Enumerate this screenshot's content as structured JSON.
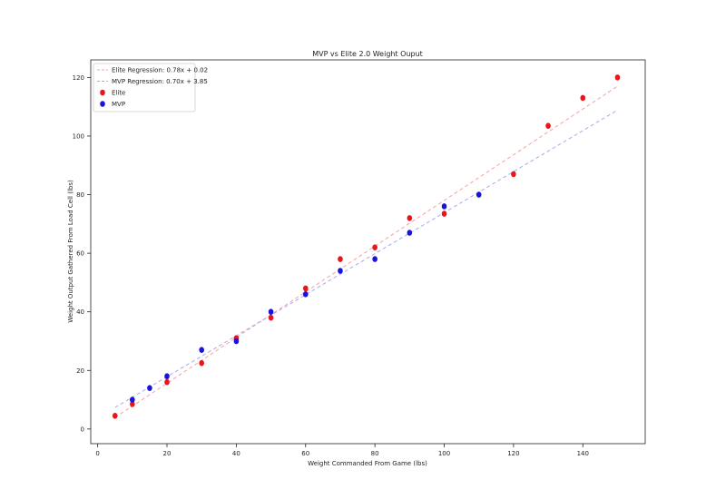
{
  "chart_data": {
    "type": "scatter",
    "title": "MVP vs Elite 2.0 Weight Ouput",
    "xlabel": "Weight Commanded From Game (lbs)",
    "ylabel": "Weight Output Gathered From Load Cell (lbs)",
    "xlim": [
      -2,
      158
    ],
    "ylim": [
      -5,
      126
    ],
    "xticks": [
      0,
      20,
      40,
      60,
      80,
      100,
      120,
      140
    ],
    "yticks": [
      0,
      20,
      40,
      60,
      80,
      100,
      120
    ],
    "grid": false,
    "legend_position": "top-left",
    "series": [
      {
        "name": "Elite",
        "kind": "scatter",
        "color": "#e8161b",
        "points": [
          [
            5,
            4.5
          ],
          [
            10,
            8.5
          ],
          [
            20,
            16
          ],
          [
            30,
            22.5
          ],
          [
            40,
            31
          ],
          [
            50,
            38
          ],
          [
            60,
            48
          ],
          [
            70,
            58
          ],
          [
            80,
            62
          ],
          [
            90,
            72
          ],
          [
            100,
            73.5
          ],
          [
            120,
            87
          ],
          [
            130,
            103.5
          ],
          [
            140,
            113
          ],
          [
            150,
            120
          ]
        ]
      },
      {
        "name": "MVP",
        "kind": "scatter",
        "color": "#1a14d9",
        "points": [
          [
            10,
            10
          ],
          [
            15,
            14
          ],
          [
            20,
            18
          ],
          [
            30,
            27
          ],
          [
            40,
            30
          ],
          [
            50,
            40
          ],
          [
            60,
            46
          ],
          [
            70,
            54
          ],
          [
            80,
            58
          ],
          [
            90,
            67
          ],
          [
            100,
            76
          ],
          [
            110,
            80
          ]
        ]
      }
    ],
    "regressions": [
      {
        "name": "Elite Regression: 0.78x + 0.02",
        "slope": 0.78,
        "intercept": 0.02,
        "x_range": [
          5,
          150
        ],
        "color": "#f4a3a3"
      },
      {
        "name": "MVP Regression: 0.70x + 3.85",
        "slope": 0.7,
        "intercept": 3.85,
        "x_range": [
          5,
          150
        ],
        "color": "#a9a9ef"
      }
    ]
  }
}
